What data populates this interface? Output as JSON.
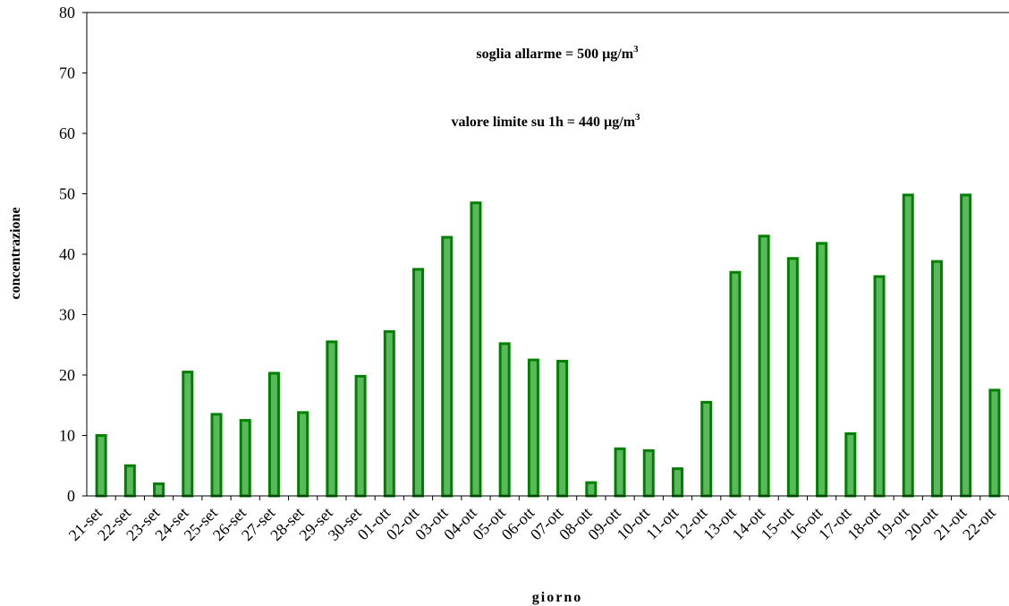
{
  "chart_data": {
    "type": "bar",
    "xlabel": "giorno",
    "ylabel": "concentrazione",
    "ylim": [
      0,
      80
    ],
    "yticks": [
      0,
      10,
      20,
      30,
      40,
      50,
      60,
      70,
      80
    ],
    "grid": false,
    "legend": "none",
    "bar_color": "#008000",
    "bar_fill": "#5cb85c",
    "annotations": [
      {
        "text": "soglia allarme = 500 µg/m",
        "sup": "3"
      },
      {
        "text": "valore limite su 1h = 440 µg/m",
        "sup": "3"
      }
    ],
    "categories": [
      "21-set",
      "22-set",
      "23-set",
      "24-set",
      "25-set",
      "26-set",
      "27-set",
      "28-set",
      "29-set",
      "30-set",
      "01-ott",
      "02-ott",
      "03-ott",
      "04-ott",
      "05-ott",
      "06-ott",
      "07-ott",
      "08-ott",
      "09-ott",
      "10-ott",
      "11-ott",
      "12-ott",
      "13-ott",
      "14-ott",
      "15-ott",
      "16-ott",
      "17-ott",
      "18-ott",
      "19-ott",
      "20-ott",
      "21-ott",
      "22-ott"
    ],
    "values": [
      10,
      5,
      2,
      20.5,
      13.5,
      12.5,
      20.3,
      13.8,
      25.5,
      19.8,
      27.2,
      37.5,
      42.8,
      48.5,
      25.2,
      22.5,
      22.3,
      2.2,
      7.8,
      7.5,
      4.5,
      15.5,
      37,
      43,
      39.3,
      41.8,
      10.3,
      36.3,
      49.8,
      38.8,
      49.8,
      17.5
    ]
  }
}
